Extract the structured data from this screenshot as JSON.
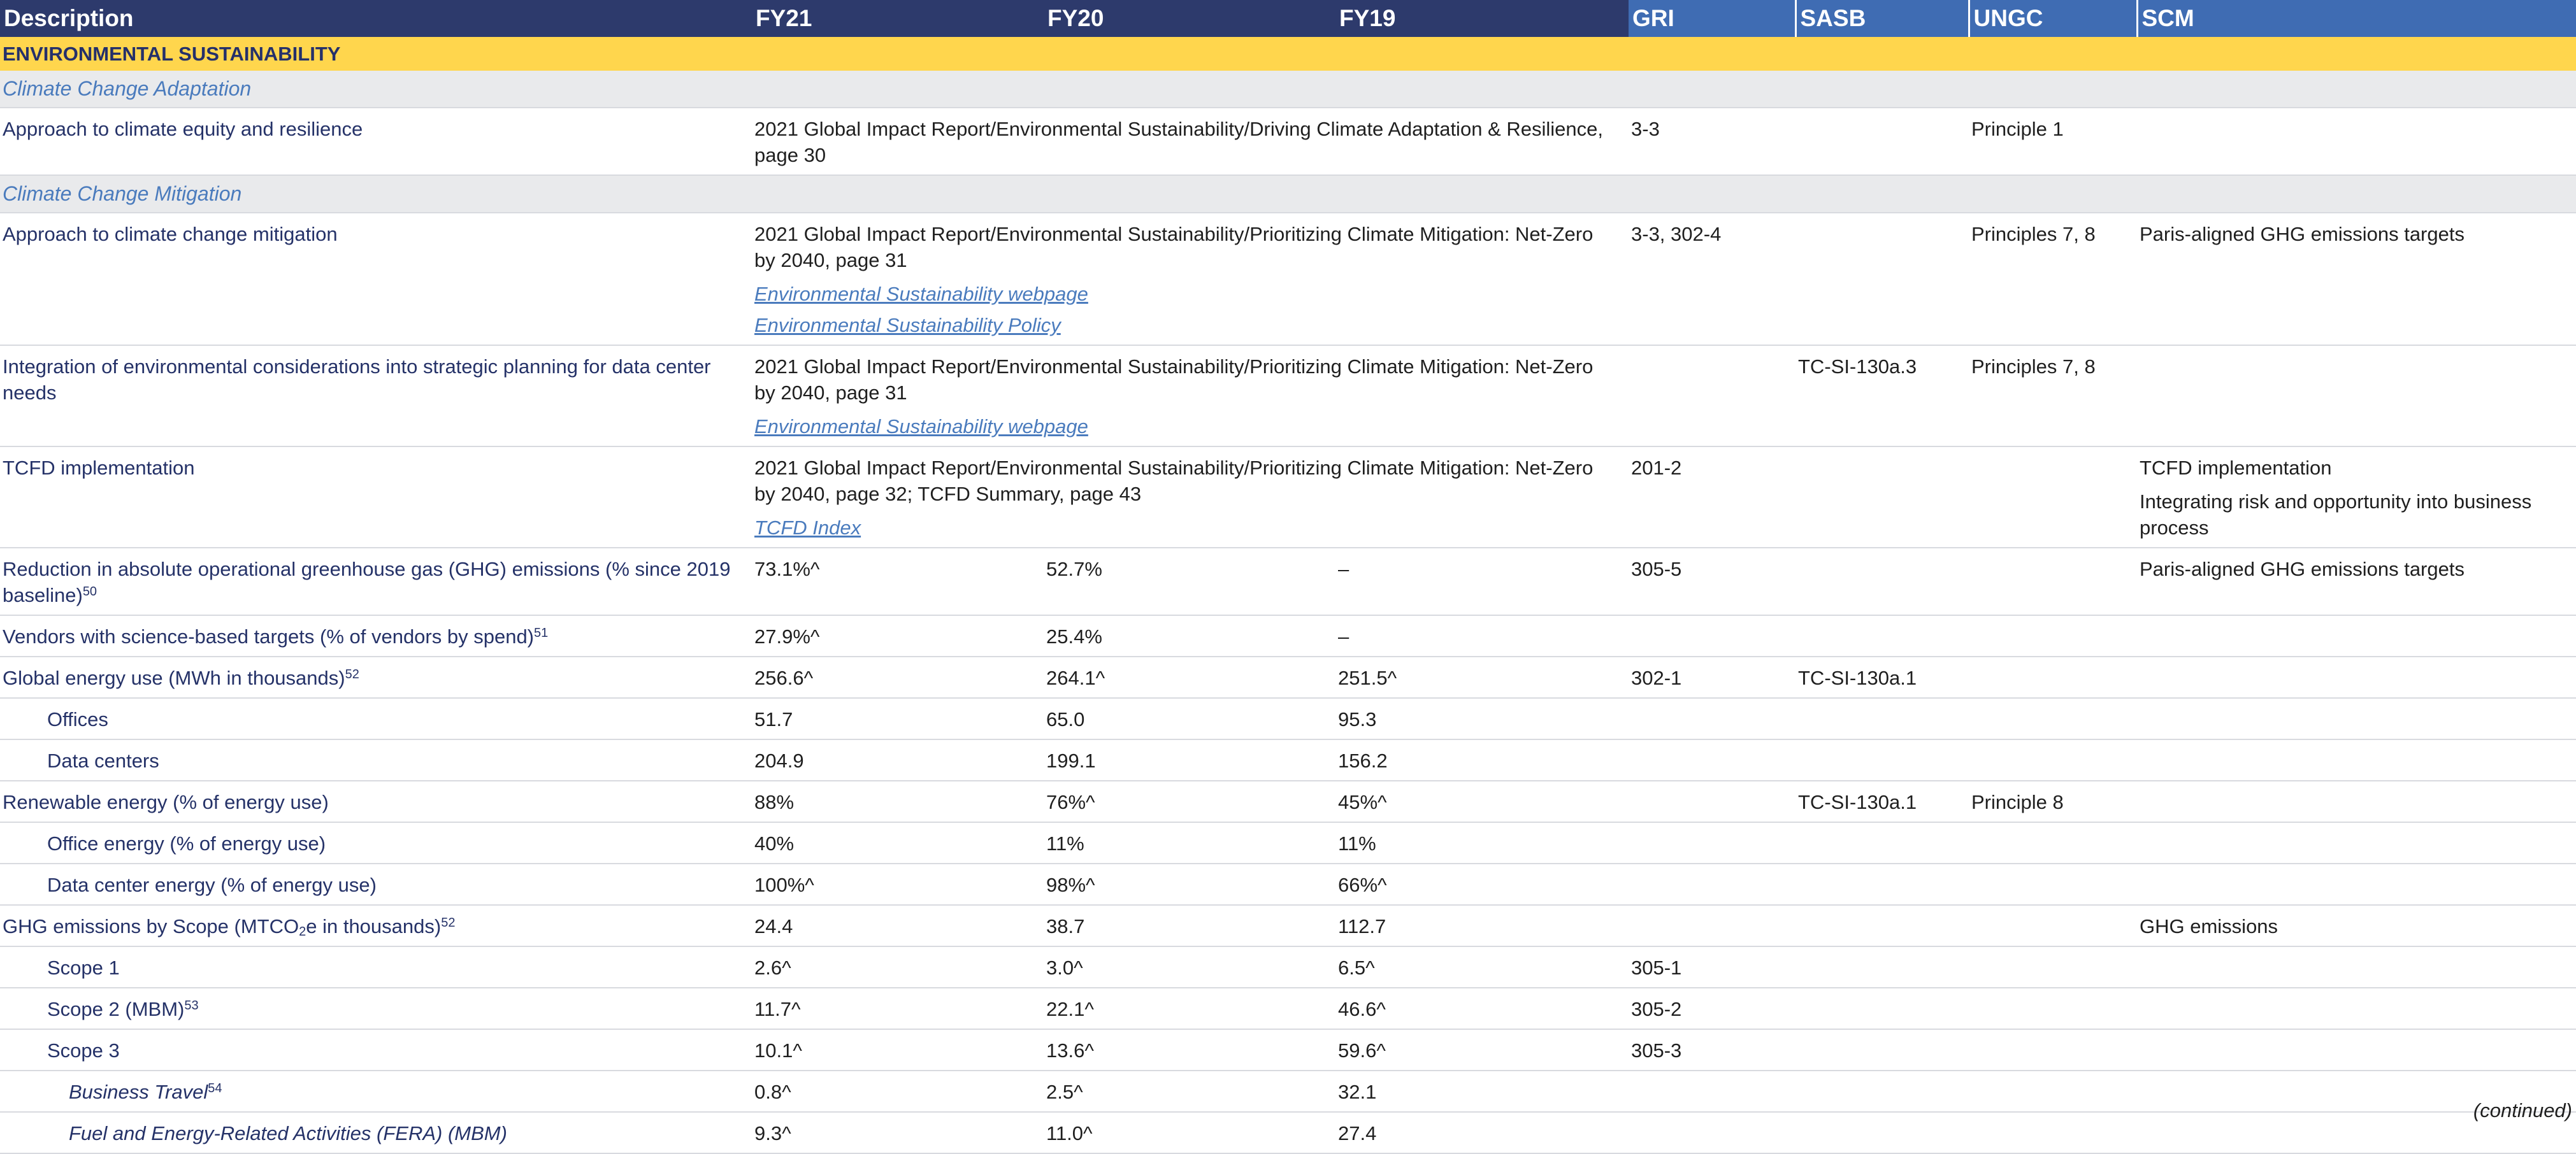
{
  "header": {
    "description": "Description",
    "fy21": "FY21",
    "fy20": "FY20",
    "fy19": "FY19",
    "gri": "GRI",
    "sasb": "SASB",
    "ungc": "UNGC",
    "scm": "SCM"
  },
  "section_title": "ENVIRONMENTAL SUSTAINABILITY",
  "subsections": {
    "adaptation": "Climate Change Adaptation",
    "mitigation": "Climate Change Mitigation"
  },
  "rows": {
    "r1": {
      "desc": "Approach to climate equity and resilience",
      "ref": "2021 Global Impact Report/Environmental Sustainability/Driving Climate Adaptation & Resilience, page 30",
      "gri": "3-3",
      "ungc": "Principle 1"
    },
    "r2": {
      "desc": "Approach to climate change mitigation",
      "ref": "2021 Global Impact Report/Environmental Sustainability/Prioritizing Climate Mitigation: Net-Zero by 2040, page 31",
      "link1": "Environmental Sustainability webpage",
      "link2": "Environmental Sustainability Policy",
      "gri": "3-3, 302-4",
      "ungc": "Principles 7, 8",
      "scm": "Paris-aligned GHG emissions targets"
    },
    "r3": {
      "desc": "Integration of environmental considerations into strategic planning for data center needs",
      "ref": "2021 Global Impact Report/Environmental Sustainability/Prioritizing Climate Mitigation: Net-Zero by 2040, page 31",
      "link1": "Environmental Sustainability webpage",
      "sasb": "TC-SI-130a.3",
      "ungc": "Principles 7, 8"
    },
    "r4": {
      "desc": "TCFD implementation",
      "ref": "2021 Global Impact Report/Environmental Sustainability/Prioritizing Climate Mitigation: Net-Zero by 2040, page 32; TCFD Summary, page 43",
      "link1": "TCFD Index",
      "gri": "201-2",
      "scm1": "TCFD implementation",
      "scm2": "Integrating risk and opportunity into business process"
    },
    "r5": {
      "desc": "Reduction in absolute operational greenhouse gas (GHG) emissions (% since 2019 baseline)",
      "fn": "50",
      "fy21": "73.1%^",
      "fy20": "52.7%",
      "fy19": "–",
      "gri": "305-5",
      "scm": "Paris-aligned GHG emissions targets"
    },
    "r6": {
      "desc": "Vendors with science-based targets (% of vendors by spend)",
      "fn": "51",
      "fy21": "27.9%^",
      "fy20": "25.4%",
      "fy19": "–"
    },
    "r7": {
      "desc": "Global energy use (MWh in thousands)",
      "fn": "52",
      "fy21": "256.6^",
      "fy20": "264.1^",
      "fy19": "251.5^",
      "gri": "302-1",
      "sasb": "TC-SI-130a.1"
    },
    "r8": {
      "desc": "Offices",
      "fy21": "51.7",
      "fy20": "65.0",
      "fy19": "95.3"
    },
    "r9": {
      "desc": "Data centers",
      "fy21": "204.9",
      "fy20": "199.1",
      "fy19": "156.2"
    },
    "r10": {
      "desc": "Renewable energy (% of energy use)",
      "fy21": "88%",
      "fy20": "76%^",
      "fy19": "45%^",
      "sasb": "TC-SI-130a.1",
      "ungc": "Principle 8"
    },
    "r11": {
      "desc": "Office energy (% of energy use)",
      "fy21": "40%",
      "fy20": "11%",
      "fy19": "11%"
    },
    "r12": {
      "desc": "Data center energy (% of energy use)",
      "fy21": "100%^",
      "fy20": "98%^",
      "fy19": "66%^"
    },
    "r13": {
      "desc_a": "GHG emissions by Scope (MTCO",
      "desc_sub": "2",
      "desc_b": "e in thousands)",
      "fn": "52",
      "fy21": "24.4",
      "fy20": "38.7",
      "fy19": "112.7",
      "scm": "GHG emissions"
    },
    "r14": {
      "desc": "Scope 1",
      "fy21": "2.6^",
      "fy20": "3.0^",
      "fy19": "6.5^",
      "gri": "305-1"
    },
    "r15": {
      "desc": "Scope 2 (MBM)",
      "fn": "53",
      "fy21": "11.7^",
      "fy20": "22.1^",
      "fy19": "46.6^",
      "gri": "305-2"
    },
    "r16": {
      "desc": "Scope 3",
      "fy21": "10.1^",
      "fy20": "13.6^",
      "fy19": "59.6^",
      "gri": "305-3"
    },
    "r17": {
      "desc": "Business Travel",
      "fn": "54",
      "fy21": "0.8^",
      "fy20": "2.5^",
      "fy19": "32.1"
    },
    "r18": {
      "desc": "Fuel and Energy-Related Activities (FERA) (MBM)",
      "fy21": "9.3^",
      "fy20": "11.0^",
      "fy19": "27.4"
    }
  },
  "footer": {
    "continued": "(continued)"
  }
}
